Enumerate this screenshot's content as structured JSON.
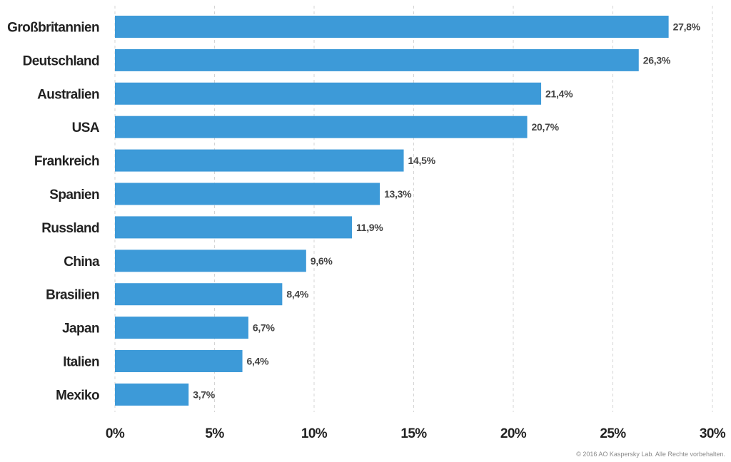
{
  "chart_data": {
    "type": "bar",
    "orientation": "horizontal",
    "categories": [
      "Großbritannien",
      "Deutschland",
      "Australien",
      "USA",
      "Frankreich",
      "Spanien",
      "Russland",
      "China",
      "Brasilien",
      "Japan",
      "Italien",
      "Mexiko"
    ],
    "values": [
      27.8,
      26.3,
      21.4,
      20.7,
      14.5,
      13.3,
      11.9,
      9.6,
      8.4,
      6.7,
      6.4,
      3.7
    ],
    "value_labels": [
      "27,8%",
      "26,3%",
      "21,4%",
      "20,7%",
      "14,5%",
      "13,3%",
      "11,9%",
      "9,6%",
      "8,4%",
      "6,7%",
      "6,4%",
      "3,7%"
    ],
    "xlim": [
      0,
      30
    ],
    "xticks": [
      0,
      5,
      10,
      15,
      20,
      25,
      30
    ],
    "xtick_labels": [
      "0%",
      "5%",
      "10%",
      "15%",
      "20%",
      "25%",
      "30%"
    ],
    "title": "",
    "xlabel": "",
    "ylabel": "",
    "grid": true,
    "legend": false,
    "bar_color": "#3d9ad8"
  },
  "footer": {
    "copyright": "© 2016 AO Kaspersky Lab. Alle Rechte vorbehalten."
  }
}
